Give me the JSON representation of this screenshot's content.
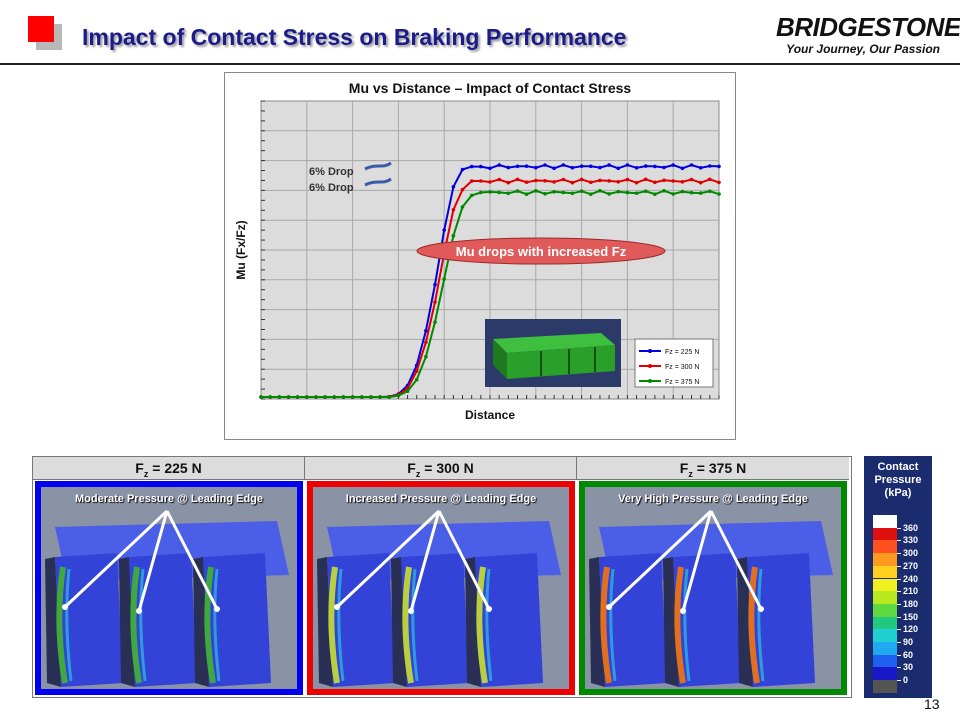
{
  "header": {
    "title": "Impact of Contact Stress on Braking Performance",
    "brand_name": "BRIDGESTONE",
    "brand_tagline": "Your Journey, Our Passion"
  },
  "chart_data": {
    "type": "line",
    "title": "Mu vs Distance – Impact of Contact Stress",
    "xlabel": "Distance",
    "ylabel": "Mu (Fx/Fz)",
    "grid": true,
    "legend_position": "bottom-right",
    "x": [
      0,
      2,
      4,
      6,
      8,
      10,
      12,
      14,
      16,
      18,
      20,
      22,
      24,
      26,
      28,
      30,
      32,
      34,
      36,
      38,
      40,
      42,
      44,
      46,
      48,
      50,
      52,
      54,
      56,
      58,
      60,
      62,
      64,
      66,
      68,
      70,
      72,
      74,
      76,
      78,
      80,
      82,
      84,
      86,
      88,
      90,
      92,
      94,
      96,
      98,
      100
    ],
    "series": [
      {
        "name": "Fz = 225 N",
        "color": "#0000e0",
        "values": [
          0,
          0,
          0,
          0,
          0,
          0,
          0,
          0,
          0,
          0,
          0,
          0,
          0,
          0,
          0.001,
          0.01,
          0.04,
          0.11,
          0.23,
          0.39,
          0.58,
          0.73,
          0.79,
          0.8,
          0.8,
          0.8,
          0.8,
          0.8,
          0.8,
          0.8,
          0.8,
          0.8,
          0.8,
          0.8,
          0.8,
          0.8,
          0.8,
          0.8,
          0.8,
          0.8,
          0.8,
          0.8,
          0.8,
          0.8,
          0.8,
          0.8,
          0.8,
          0.8,
          0.8,
          0.8,
          0.8
        ]
      },
      {
        "name": "Fz = 300 N",
        "color": "#e00000",
        "values": [
          0,
          0,
          0,
          0,
          0,
          0,
          0,
          0,
          0,
          0,
          0,
          0,
          0,
          0,
          0.001,
          0.008,
          0.03,
          0.09,
          0.19,
          0.33,
          0.5,
          0.65,
          0.72,
          0.75,
          0.75,
          0.75,
          0.75,
          0.75,
          0.75,
          0.75,
          0.75,
          0.75,
          0.75,
          0.75,
          0.75,
          0.75,
          0.75,
          0.75,
          0.75,
          0.75,
          0.75,
          0.75,
          0.75,
          0.75,
          0.75,
          0.75,
          0.75,
          0.75,
          0.75,
          0.75,
          0.75
        ]
      },
      {
        "name": "Fz = 375 N",
        "color": "#008a00",
        "values": [
          0,
          0,
          0,
          0,
          0,
          0,
          0,
          0,
          0,
          0,
          0,
          0,
          0,
          0,
          0,
          0.005,
          0.02,
          0.06,
          0.14,
          0.26,
          0.41,
          0.56,
          0.66,
          0.7,
          0.71,
          0.71,
          0.71,
          0.71,
          0.71,
          0.71,
          0.71,
          0.71,
          0.71,
          0.71,
          0.71,
          0.71,
          0.71,
          0.71,
          0.71,
          0.71,
          0.71,
          0.71,
          0.71,
          0.71,
          0.71,
          0.71,
          0.71,
          0.71,
          0.71,
          0.71,
          0.71
        ]
      }
    ],
    "annotations": [
      "6% Drop",
      "6% Drop",
      "Mu drops with increased Fz"
    ]
  },
  "panels": [
    {
      "label": "F",
      "sub": "z",
      "value": " = 225 N",
      "caption": "Moderate Pressure @ Leading Edge",
      "border": "#0000ee",
      "edge": "#3fa83f"
    },
    {
      "label": "F",
      "sub": "z",
      "value": " = 300 N",
      "caption": "Increased Pressure @ Leading Edge",
      "border": "#ee0000",
      "edge": "#b8d040"
    },
    {
      "label": "F",
      "sub": "z",
      "value": " = 375 N",
      "caption": "Very High Pressure @ Leading Edge",
      "border": "#008a00",
      "edge": "#e07020"
    }
  ],
  "contact_legend": {
    "title": "Contact Pressure (kPa)",
    "ticks": [
      "360",
      "330",
      "300",
      "270",
      "240",
      "210",
      "180",
      "150",
      "120",
      "90",
      "60",
      "30",
      "0"
    ],
    "colors": [
      "#ffffff",
      "#e01010",
      "#ff5020",
      "#ff9a20",
      "#ffd020",
      "#f0f020",
      "#b8e820",
      "#60d840",
      "#20c880",
      "#20d0d0",
      "#20a8f0",
      "#2060f0",
      "#1818c8",
      "#555555"
    ]
  },
  "page": {
    "number": "13"
  }
}
